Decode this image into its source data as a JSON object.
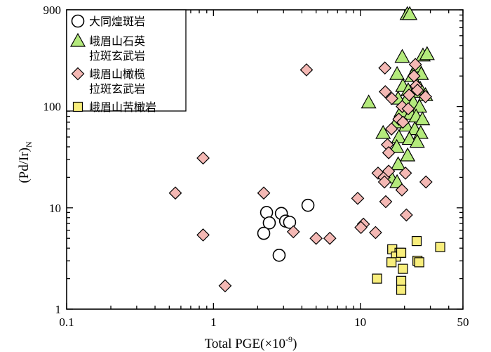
{
  "chart_data": {
    "type": "scatter",
    "xscale": "log",
    "yscale": "log",
    "xlim": [
      0.1,
      50
    ],
    "ylim": [
      1,
      900
    ],
    "xticks": [
      {
        "value": 0.1,
        "label": "0.1"
      },
      {
        "value": 1,
        "label": "1"
      },
      {
        "value": 10,
        "label": "10"
      },
      {
        "value": 50,
        "label": "50"
      }
    ],
    "yticks": [
      {
        "value": 1,
        "label": "1"
      },
      {
        "value": 10,
        "label": "10"
      },
      {
        "value": 100,
        "label": "100"
      },
      {
        "value": 900,
        "label": "900"
      }
    ],
    "xlabel": "Total PGE(×10",
    "xlabel_sup": "-9",
    "xlabel_end": ")",
    "ylabel": "(Pd/Ir)",
    "ylabel_sub": "N",
    "legend_position": "top-left",
    "series": [
      {
        "name": "大同煌斑岩",
        "marker": "circle",
        "fill": "#ffffff",
        "points": [
          [
            2.3,
            9.0
          ],
          [
            2.9,
            8.8
          ],
          [
            2.4,
            7.1
          ],
          [
            3.1,
            7.4
          ],
          [
            3.3,
            7.2
          ],
          [
            2.2,
            5.6
          ],
          [
            2.8,
            3.4
          ],
          [
            4.4,
            10.6
          ]
        ]
      },
      {
        "name": "峨眉山石英拉斑玄武岩",
        "marker": "triangle",
        "fill": "#b4ea7c",
        "points": [
          [
            20.9,
            820
          ],
          [
            21.7,
            820
          ],
          [
            19.3,
            310
          ],
          [
            24.4,
            250
          ],
          [
            26.7,
            320
          ],
          [
            28.5,
            330
          ],
          [
            17.8,
            210
          ],
          [
            22.5,
            200
          ],
          [
            26.0,
            210
          ],
          [
            19.5,
            160
          ],
          [
            21.2,
            145
          ],
          [
            23.3,
            140
          ],
          [
            25.6,
            150
          ],
          [
            27.8,
            130
          ],
          [
            11.4,
            110
          ],
          [
            18.1,
            120
          ],
          [
            20.5,
            115
          ],
          [
            23.0,
            110
          ],
          [
            25.3,
            100
          ],
          [
            19.0,
            90
          ],
          [
            22.0,
            85
          ],
          [
            24.0,
            80
          ],
          [
            26.5,
            75
          ],
          [
            17.6,
            70
          ],
          [
            20.5,
            65
          ],
          [
            23.5,
            60
          ],
          [
            25.8,
            55
          ],
          [
            14.3,
            55
          ],
          [
            18.3,
            50
          ],
          [
            21.6,
            48
          ],
          [
            24.4,
            45
          ],
          [
            17.7,
            40
          ],
          [
            21.0,
            33
          ],
          [
            18.1,
            27
          ],
          [
            16.2,
            20
          ],
          [
            17.8,
            18
          ]
        ]
      },
      {
        "name": "峨眉山橄榄拉斑玄武岩",
        "marker": "diamond",
        "fill": "#f4b8b4",
        "points": [
          [
            4.3,
            230
          ],
          [
            14.7,
            240
          ],
          [
            23.7,
            260
          ],
          [
            23.2,
            200
          ],
          [
            24.0,
            160
          ],
          [
            14.8,
            140
          ],
          [
            24.5,
            145
          ],
          [
            27.8,
            125
          ],
          [
            21.5,
            130
          ],
          [
            16.4,
            120
          ],
          [
            19.3,
            100
          ],
          [
            21.2,
            95
          ],
          [
            18.3,
            75
          ],
          [
            19.5,
            70
          ],
          [
            16.3,
            60
          ],
          [
            15.3,
            42
          ],
          [
            15.6,
            35
          ],
          [
            0.85,
            31
          ],
          [
            13.2,
            22
          ],
          [
            14.5,
            20
          ],
          [
            15.6,
            23
          ],
          [
            14.6,
            18
          ],
          [
            20.3,
            22
          ],
          [
            28.0,
            18
          ],
          [
            0.55,
            14
          ],
          [
            2.2,
            14
          ],
          [
            19.2,
            15
          ],
          [
            9.6,
            12.4
          ],
          [
            14.9,
            11.5
          ],
          [
            20.6,
            8.5
          ],
          [
            10.5,
            6.9
          ],
          [
            12.7,
            5.7
          ],
          [
            10.1,
            6.4
          ],
          [
            3.5,
            5.8
          ],
          [
            5.0,
            5.0
          ],
          [
            6.2,
            5.0
          ],
          [
            0.85,
            5.4
          ],
          [
            1.2,
            1.7
          ]
        ]
      },
      {
        "name": "峨眉山苦橄岩",
        "marker": "square",
        "fill": "#f8ee7c",
        "points": [
          [
            16.5,
            3.9
          ],
          [
            18.5,
            3.6
          ],
          [
            17.5,
            3.3
          ],
          [
            19.0,
            3.6
          ],
          [
            16.3,
            2.9
          ],
          [
            24.2,
            4.7
          ],
          [
            35.0,
            4.1
          ],
          [
            24.5,
            3.0
          ],
          [
            25.2,
            2.9
          ],
          [
            19.5,
            2.5
          ],
          [
            13.0,
            2.0
          ],
          [
            19.0,
            1.9
          ],
          [
            19.0,
            1.55
          ]
        ]
      }
    ],
    "legend": [
      {
        "text": "大同煌斑岩",
        "text2": "",
        "marker": "circle",
        "fill": "#ffffff"
      },
      {
        "text": "峨眉山石英",
        "text2": "拉斑玄武岩",
        "marker": "triangle",
        "fill": "#b4ea7c"
      },
      {
        "text": "峨眉山橄榄",
        "text2": "拉斑玄武岩",
        "marker": "diamond",
        "fill": "#f4b8b4"
      },
      {
        "text": "峨眉山苦橄岩",
        "text2": "",
        "marker": "square",
        "fill": "#f8ee7c"
      }
    ]
  }
}
